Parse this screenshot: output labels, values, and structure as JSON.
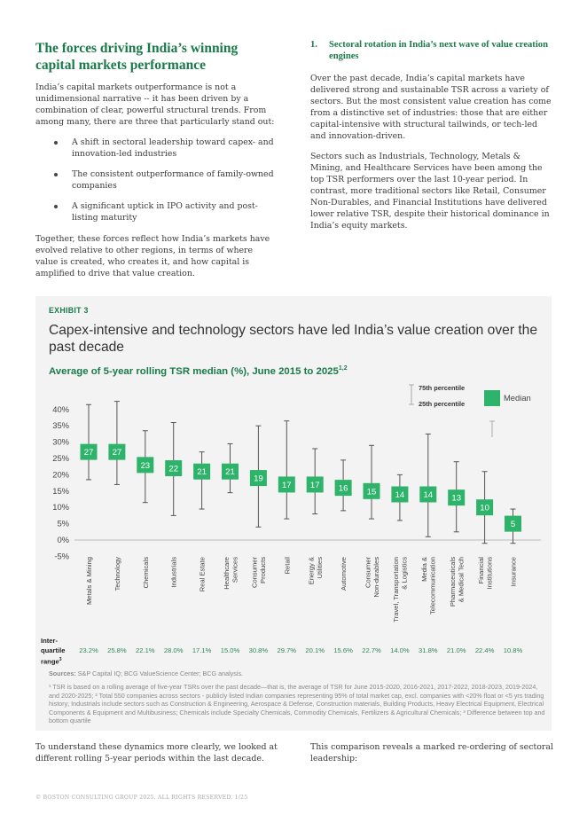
{
  "left_column": {
    "title": "The forces driving India’s winning capital markets performance",
    "intro": "India’s capital markets outperformance is not a unidimensional narrative -- it has been driven by a combination of clear, powerful structural trends. From among many, there are three that particularly stand out:",
    "bullets": [
      "A shift in sectoral leadership toward capex- and innovation-led industries",
      "The consistent outperformance of family-owned companies",
      "A significant uptick in IPO activity and post-listing maturity"
    ],
    "together": "Together, these forces reflect how India’s markets have evolved relative to other regions, in terms of where value is created, who creates it, and how capital is amplified to drive that value creation."
  },
  "right_column": {
    "section_number": "1.",
    "section_title": "Sectoral rotation in India’s next wave of value creation engines",
    "paragraph1": "Over the past decade, India’s capital markets have delivered strong and sustainable TSR across a variety of sectors. But the most consistent value creation has come from a distinctive set of industries: those that are either capital-intensive with structural tailwinds, or tech-led and innovation-driven.",
    "paragraph2": "Sectors such as Industrials, Technology, Metals & Mining, and Healthcare Services have been among the top TSR performers over the last 10-year period. In contrast, more traditional sectors like Retail, Consumer Non-Durables, and Financial Institutions have delivered lower relative TSR, despite their historical dominance in India’s equity markets."
  },
  "exhibit": {
    "label": "EXHIBIT 3",
    "title": "Capex-intensive and technology sectors have led India’s value creation over the past decade",
    "subtitle": "Average of 5-year rolling TSR median (%), June 2015 to 2025",
    "subtitle_sup": "1,2",
    "iqr_label": [
      "Inter-",
      "quartile",
      "range"
    ],
    "iqr_label_sup": "3",
    "sources_label": "Sources:",
    "sources_text": "S&P Capital IQ; BCG ValueScience Center; BCG analysis.",
    "footnote": "¹ TSR is based on a rolling average of five-year TSRs over the past decade—that is, the average of TSR for June 2015-2020, 2016-2021, 2017-2022, 2018-2023, 2019-2024, and 2020-2025; ² Total 550 companies across sectors - publicly listed Indian companies representing 95% of total market cap, excl. companies with <20% float or <5 yrs trading history; Industrials include sectors such as Construction & Engineering, Aerospace & Defense, Construction materials, Building Products, Heavy Electrical Equipment, Electrical Components & Equipment and Multibusiness; Chemicals include Specialty Chemicals, Commodity Chemicals, Fertilizers & Agricultural Chemicals; ³ Difference between top and bottom quartile"
  },
  "chart_data": {
    "type": "box",
    "title": "Average of 5-year rolling TSR median (%), June 2015 to 2025",
    "yticks": [
      "40%",
      "35%",
      "30%",
      "25%",
      "20%",
      "15%",
      "10%",
      "5%",
      "0%",
      "-5%"
    ],
    "ylim": [
      -5,
      40
    ],
    "legend": {
      "p75": "75th percentile",
      "p25": "25th percentile",
      "median": "Median",
      "median_color": "#2db36a"
    },
    "categories": [
      [
        "Metals & Mining"
      ],
      [
        "Technology"
      ],
      [
        "Chemicals"
      ],
      [
        "Industrials"
      ],
      [
        "Real Estate"
      ],
      [
        "Healthcare",
        "Services"
      ],
      [
        "Consumer",
        "Products"
      ],
      [
        "Retail"
      ],
      [
        "Energy &",
        "Utilities"
      ],
      [
        "Automotive"
      ],
      [
        "Consumer",
        "Non-durables"
      ],
      [
        "Travel, Transportation",
        "& Logistics"
      ],
      [
        "Media &",
        "Telecommunication"
      ],
      [
        "Pharmaceuticals",
        "& Medical Tech"
      ],
      [
        "Financial",
        "Institutions"
      ],
      [
        "Insurance"
      ]
    ],
    "median": [
      27,
      27,
      23,
      22,
      21,
      21,
      19,
      17,
      17,
      16,
      15,
      14,
      14,
      13,
      10,
      5
    ],
    "p75": [
      41.5,
      42.5,
      33.5,
      36,
      27,
      29.5,
      35,
      36.5,
      28,
      24.5,
      29,
      20,
      32.5,
      24,
      21,
      9.5
    ],
    "p25": [
      18.5,
      17,
      11.5,
      7.5,
      9.5,
      14.5,
      4,
      6.5,
      8,
      9,
      6.5,
      6,
      1,
      2.5,
      -1,
      -1
    ],
    "iqr": [
      "23.2%",
      "25.8%",
      "22.1%",
      "28.0%",
      "17.1%",
      "15.0%",
      "30.8%",
      "29.7%",
      "20.1%",
      "15.6%",
      "22.7%",
      "14.0%",
      "31.8%",
      "21.0%",
      "22.4%",
      "10.8%"
    ],
    "colors": {
      "median_box": "#2db36a",
      "whisker": "#555555",
      "legend_whisker": "#aaaaaa",
      "iqr_text": "#2a8a55"
    }
  },
  "bottom": {
    "left": "To understand these dynamics more clearly, we looked at different rolling 5-year periods within the last decade.",
    "right": "This comparison reveals a marked re-ordering of sectoral leadership:"
  },
  "copyright": "© BOSTON CONSULTING GROUP 2025. ALL RIGHTS RESERVED. 1/25"
}
